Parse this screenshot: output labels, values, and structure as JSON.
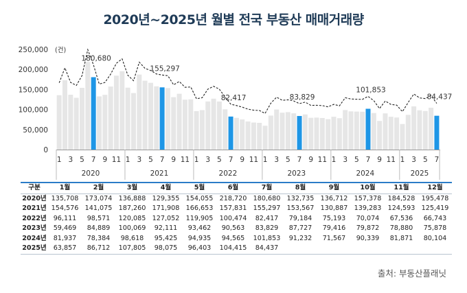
{
  "title": "2020년~2025년 월별 전국 부동산 매매거래량",
  "chart_data": {
    "type": "bar",
    "unit_label": "(건)",
    "ylim": [
      0,
      250000
    ],
    "y_ticks": [
      "0",
      "50,000",
      "100,000",
      "150,000",
      "200,000",
      "250,000"
    ],
    "x_tick_labels": [
      "1",
      "3",
      "5",
      "7",
      "9",
      "11"
    ],
    "grid": false,
    "highlight_color": "#1e96e6",
    "bar_color": "#e6e6e6",
    "line_style": "dashed",
    "annotations": [
      "180,680",
      "155,297",
      "82,417",
      "83,829",
      "101,853",
      "84,437"
    ],
    "series": [
      {
        "year": "2020",
        "values": [
          135708,
          173074,
          136888,
          129355,
          154055,
          218720,
          180680,
          132735,
          136712,
          157378,
          184528,
          195478
        ]
      },
      {
        "year": "2021",
        "values": [
          154576,
          141075,
          187260,
          171908,
          166653,
          157831,
          155297,
          153567,
          130887,
          139283,
          124593,
          125419
        ]
      },
      {
        "year": "2022",
        "values": [
          96111,
          98571,
          120085,
          127052,
          119905,
          100474,
          82417,
          79184,
          75193,
          70074,
          67536,
          66743
        ]
      },
      {
        "year": "2023",
        "values": [
          59469,
          84889,
          100069,
          92111,
          93462,
          90563,
          83829,
          87727,
          79416,
          79872,
          78880,
          75878
        ]
      },
      {
        "year": "2024",
        "values": [
          81937,
          78384,
          98618,
          95425,
          94935,
          94565,
          101853,
          91232,
          71567,
          90339,
          81871,
          80104
        ]
      },
      {
        "year": "2025",
        "values": [
          63857,
          86712,
          107805,
          98075,
          96403,
          104415,
          84437
        ]
      }
    ]
  },
  "table": {
    "header": [
      "구분",
      "1월",
      "2월",
      "3월",
      "4월",
      "5월",
      "6월",
      "7월",
      "8월",
      "9월",
      "10월",
      "11월",
      "12월"
    ],
    "rows": [
      {
        "label": "2020년",
        "cells": [
          "135,708",
          "173,074",
          "136,888",
          "129,355",
          "154,055",
          "218,720",
          "180,680",
          "132,735",
          "136,712",
          "157,378",
          "184,528",
          "195,478"
        ]
      },
      {
        "label": "2021년",
        "cells": [
          "154,576",
          "141,075",
          "187,260",
          "171,908",
          "166,653",
          "157,831",
          "155,297",
          "153,567",
          "130,887",
          "139,283",
          "124,593",
          "125,419"
        ]
      },
      {
        "label": "2022년",
        "cells": [
          "96,111",
          "98,571",
          "120,085",
          "127,052",
          "119,905",
          "100,474",
          "82,417",
          "79,184",
          "75,193",
          "70,074",
          "67,536",
          "66,743"
        ]
      },
      {
        "label": "2023년",
        "cells": [
          "59,469",
          "84,889",
          "100,069",
          "92,111",
          "93,462",
          "90,563",
          "83,829",
          "87,727",
          "79,416",
          "79,872",
          "78,880",
          "75,878"
        ]
      },
      {
        "label": "2024년",
        "cells": [
          "81,937",
          "78,384",
          "98,618",
          "95,425",
          "94,935",
          "94,565",
          "101,853",
          "91,232",
          "71,567",
          "90,339",
          "81,871",
          "80,104"
        ]
      },
      {
        "label": "2025년",
        "cells": [
          "63,857",
          "86,712",
          "107,805",
          "98,075",
          "96,403",
          "104,415",
          "84,437",
          "",
          "",
          "",
          "",
          ""
        ]
      }
    ]
  },
  "source": "출처: 부동산플래닛"
}
